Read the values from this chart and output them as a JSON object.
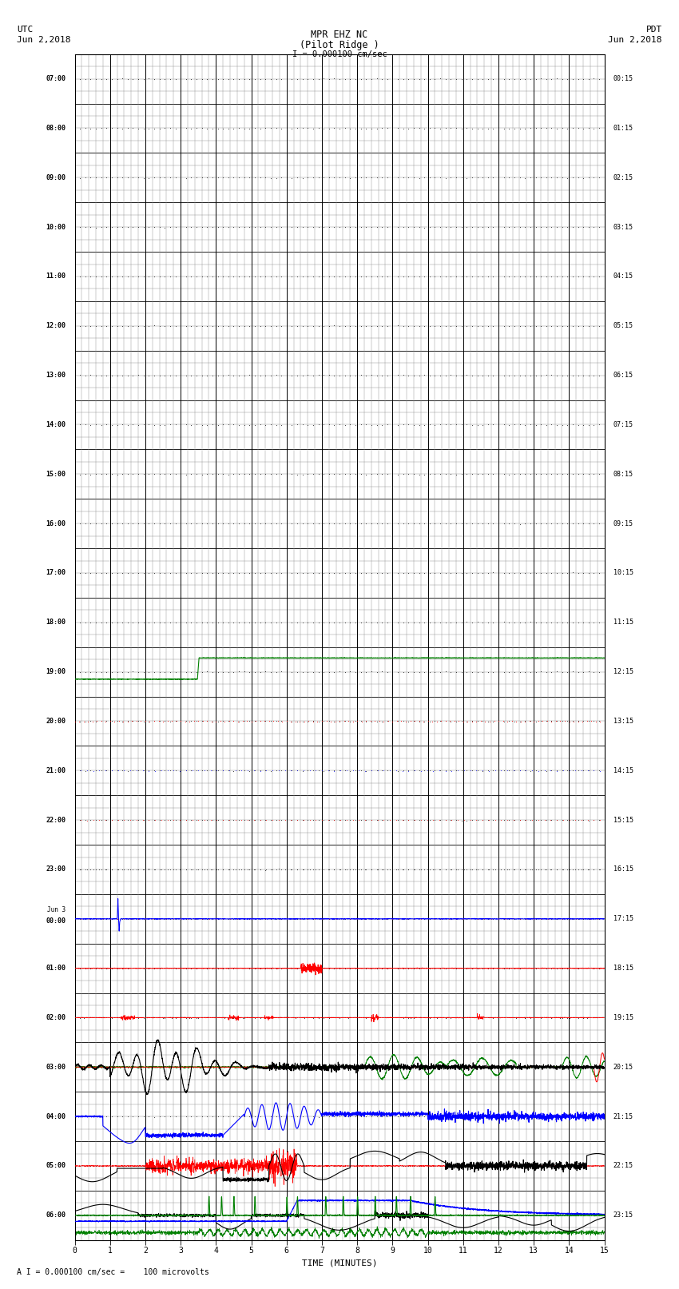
{
  "title_line1": "MPR EHZ NC",
  "title_line2": "(Pilot Ridge )",
  "scale_label": "I = 0.000100 cm/sec",
  "footer_label": "A I = 0.000100 cm/sec =    100 microvolts",
  "utc_times": [
    "07:00",
    "08:00",
    "09:00",
    "10:00",
    "11:00",
    "12:00",
    "13:00",
    "14:00",
    "15:00",
    "16:00",
    "17:00",
    "18:00",
    "19:00",
    "20:00",
    "21:00",
    "22:00",
    "23:00",
    "Jun 3\n00:00",
    "01:00",
    "02:00",
    "03:00",
    "04:00",
    "05:00",
    "06:00"
  ],
  "pdt_times": [
    "00:15",
    "01:15",
    "02:15",
    "03:15",
    "04:15",
    "05:15",
    "06:15",
    "07:15",
    "08:15",
    "09:15",
    "10:15",
    "11:15",
    "12:15",
    "13:15",
    "14:15",
    "15:15",
    "16:15",
    "17:15",
    "18:15",
    "19:15",
    "20:15",
    "21:15",
    "22:15",
    "23:15"
  ],
  "n_rows": 24,
  "x_min": 0,
  "x_max": 15,
  "bg_color": "#ffffff",
  "grid_major_color": "#000000",
  "grid_minor_color": "#888888",
  "font_family": "monospace"
}
